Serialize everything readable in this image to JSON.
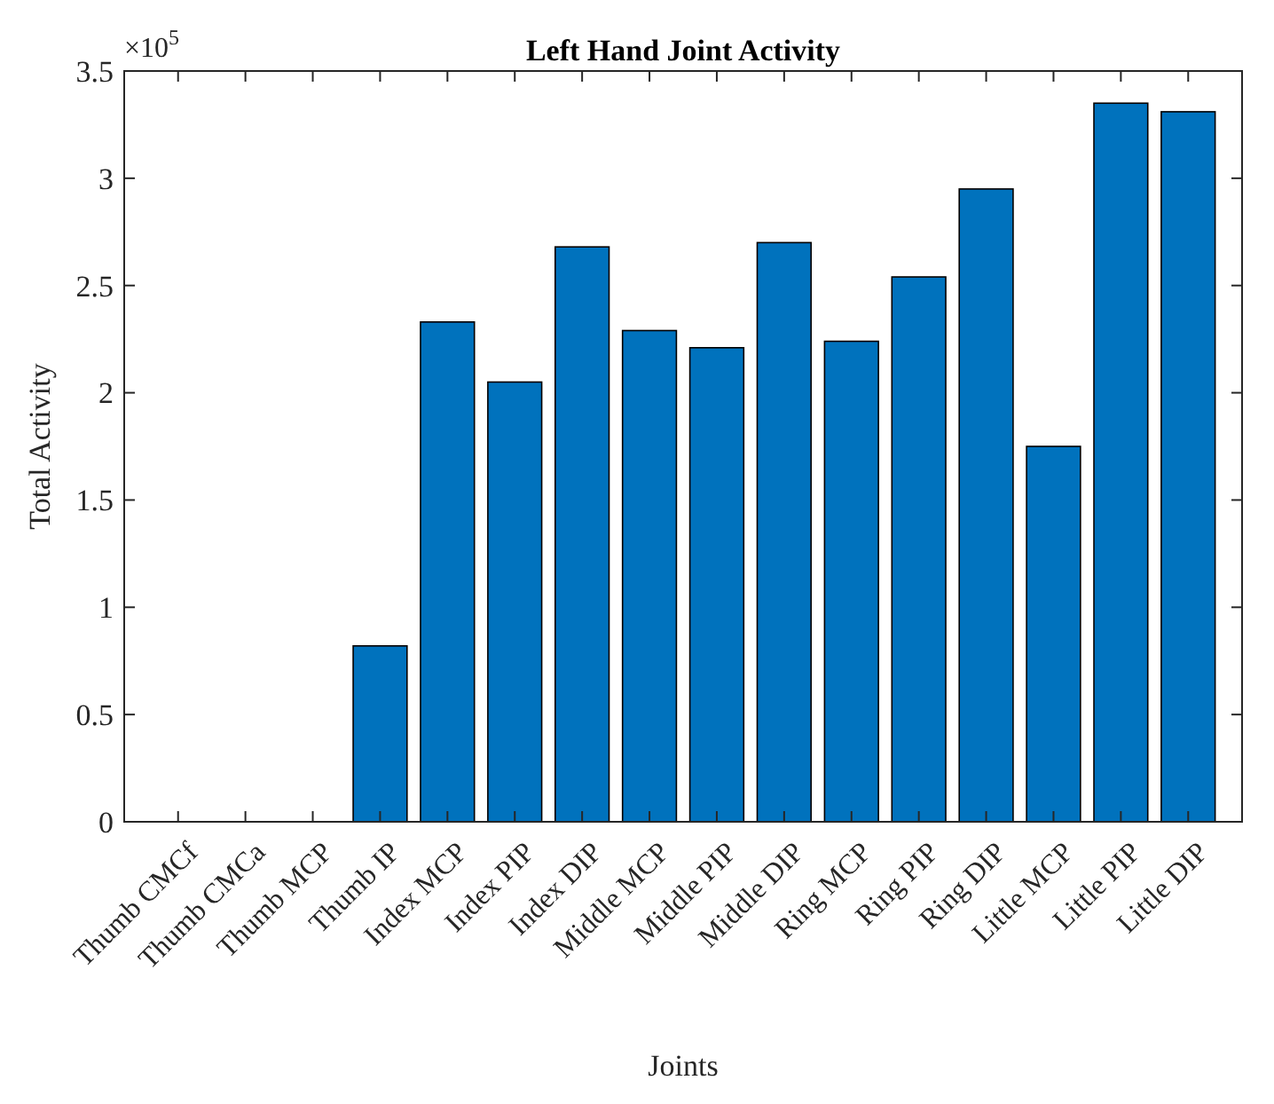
{
  "chart_data": {
    "type": "bar",
    "title": "Left Hand Joint Activity",
    "xlabel": "Joints",
    "ylabel": "Total Activity",
    "annotations": [
      "×10$^{5}$"
    ],
    "categories": [
      "Thumb CMCf",
      "Thumb CMCa",
      "Thumb MCP",
      "Thumb IP",
      "Index MCP",
      "Index PIP",
      "Index DIP",
      "Middle MCP",
      "Middle PIP",
      "Middle DIP",
      "Ring MCP",
      "Ring PIP",
      "Ring DIP",
      "Little MCP",
      "Little PIP",
      "Little DIP"
    ],
    "values": [
      0,
      0,
      0,
      0.82,
      2.33,
      2.05,
      2.68,
      2.29,
      2.21,
      2.7,
      2.24,
      2.54,
      2.95,
      1.75,
      3.35,
      3.31
    ],
    "color": "#0072bd",
    "ylim": [
      0,
      3.5
    ],
    "yticks": [
      0,
      0.5,
      1,
      1.5,
      2,
      2.5,
      3,
      3.5
    ],
    "grid": false
  }
}
